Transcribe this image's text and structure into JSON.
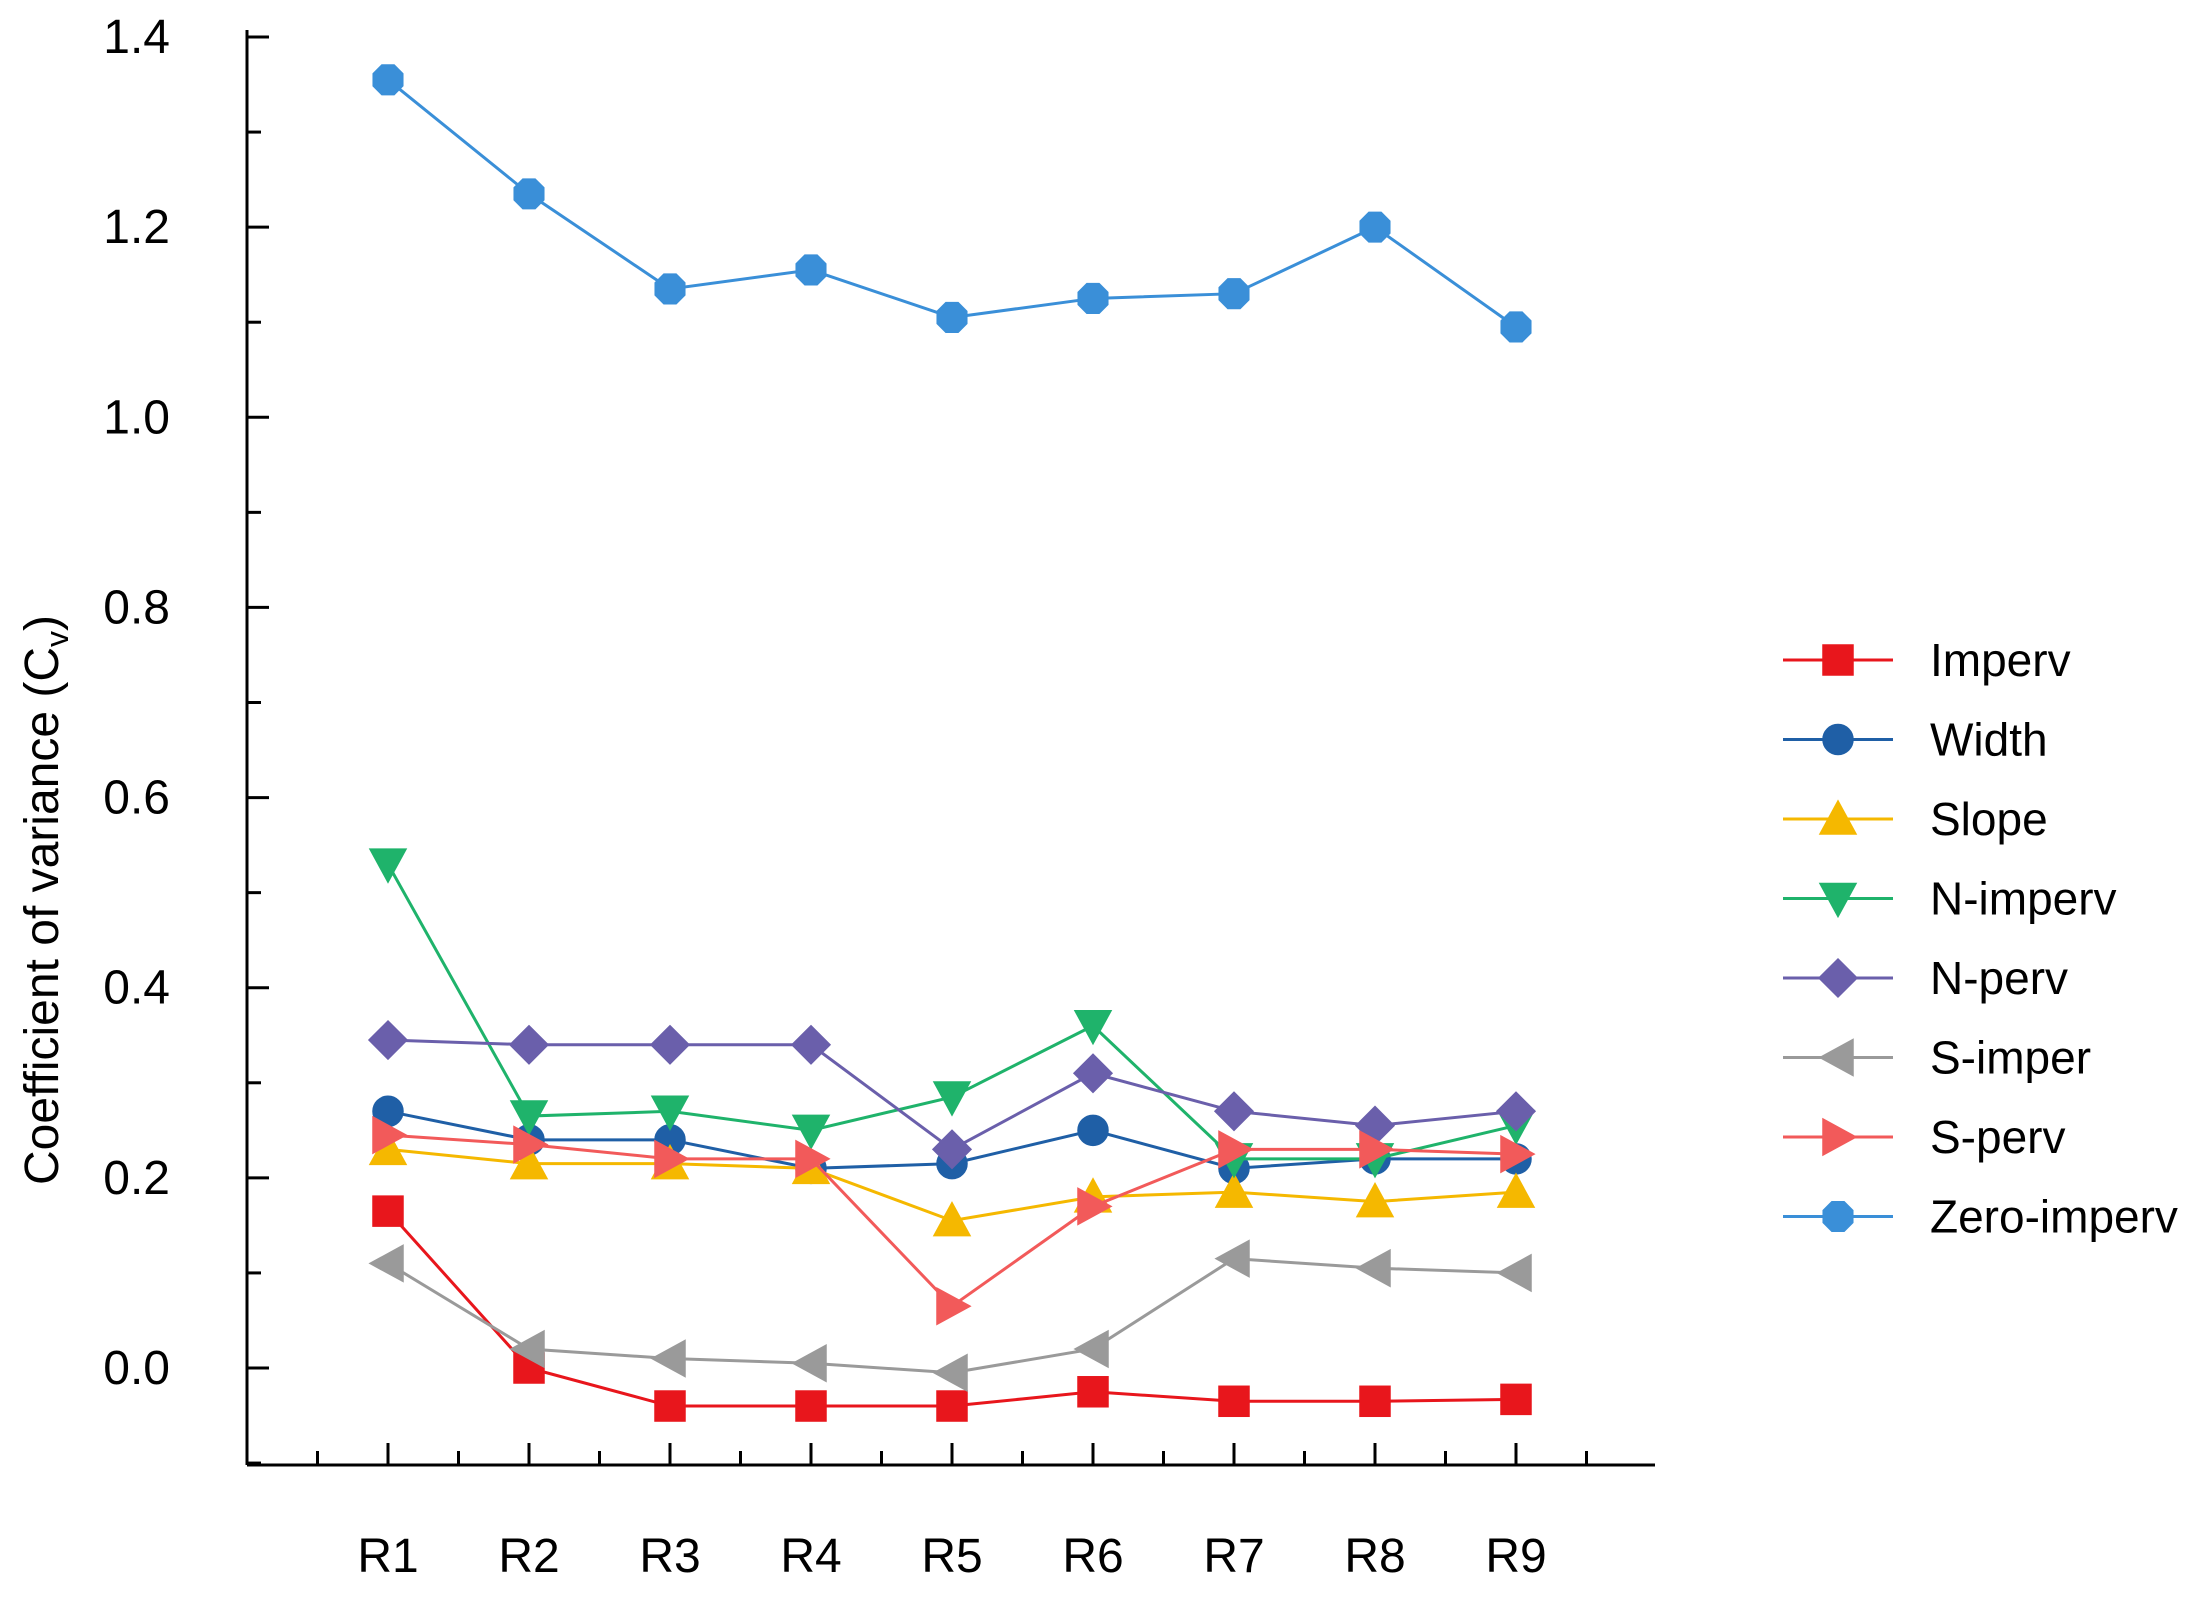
{
  "chart_data": {
    "type": "line",
    "title": "",
    "xlabel": "",
    "ylabel": "Coefficient of variance (C",
    "ylabel_sub": "v",
    "ylabel_close": ")",
    "categories": [
      "R1",
      "R2",
      "R3",
      "R4",
      "R5",
      "R6",
      "R7",
      "R8",
      "R9"
    ],
    "ylim": [
      -0.1,
      1.4
    ],
    "yticks": [
      {
        "value": 0.0,
        "label": "0.0"
      },
      {
        "value": 0.2,
        "label": "0.2"
      },
      {
        "value": 0.4,
        "label": "0.4"
      },
      {
        "value": 0.6,
        "label": "0.6"
      },
      {
        "value": 0.8,
        "label": "0.8"
      },
      {
        "value": 1.0,
        "label": "1.0"
      },
      {
        "value": 1.2,
        "label": "1.2"
      },
      {
        "value": 1.4,
        "label": "1.4"
      }
    ],
    "grid": false,
    "legend": "right",
    "series": [
      {
        "name": "Imperv",
        "color": "#e8161c",
        "marker": "square",
        "values": [
          0.165,
          0.0,
          -0.04,
          -0.04,
          -0.04,
          -0.025,
          -0.035,
          -0.035,
          -0.033
        ]
      },
      {
        "name": "Width",
        "color": "#1f5fa6",
        "marker": "circle",
        "values": [
          0.27,
          0.24,
          0.24,
          0.21,
          0.215,
          0.25,
          0.21,
          0.22,
          0.22
        ]
      },
      {
        "name": "Slope",
        "color": "#f5b800",
        "marker": "triangle-up",
        "values": [
          0.23,
          0.215,
          0.215,
          0.21,
          0.155,
          0.18,
          0.185,
          0.175,
          0.185
        ]
      },
      {
        "name": "N-imperv",
        "color": "#1fb36b",
        "marker": "triangle-down",
        "values": [
          0.53,
          0.265,
          0.27,
          0.25,
          0.285,
          0.36,
          0.22,
          0.22,
          0.255
        ]
      },
      {
        "name": "N-perv",
        "color": "#6a5fab",
        "marker": "diamond",
        "values": [
          0.345,
          0.34,
          0.34,
          0.34,
          0.23,
          0.31,
          0.27,
          0.255,
          0.27
        ]
      },
      {
        "name": "S-imper",
        "color": "#9a9a9a",
        "marker": "triangle-left",
        "values": [
          0.11,
          0.02,
          0.01,
          0.005,
          -0.005,
          0.02,
          0.115,
          0.105,
          0.1
        ]
      },
      {
        "name": "S-perv",
        "color": "#f25a5a",
        "marker": "triangle-right",
        "values": [
          0.245,
          0.235,
          0.22,
          0.22,
          0.065,
          0.17,
          0.23,
          0.23,
          0.225
        ]
      },
      {
        "name": "Zero-imperv",
        "color": "#3a8fd8",
        "marker": "octagon",
        "values": [
          1.355,
          1.235,
          1.135,
          1.155,
          1.105,
          1.125,
          1.13,
          1.2,
          1.095
        ]
      }
    ]
  }
}
